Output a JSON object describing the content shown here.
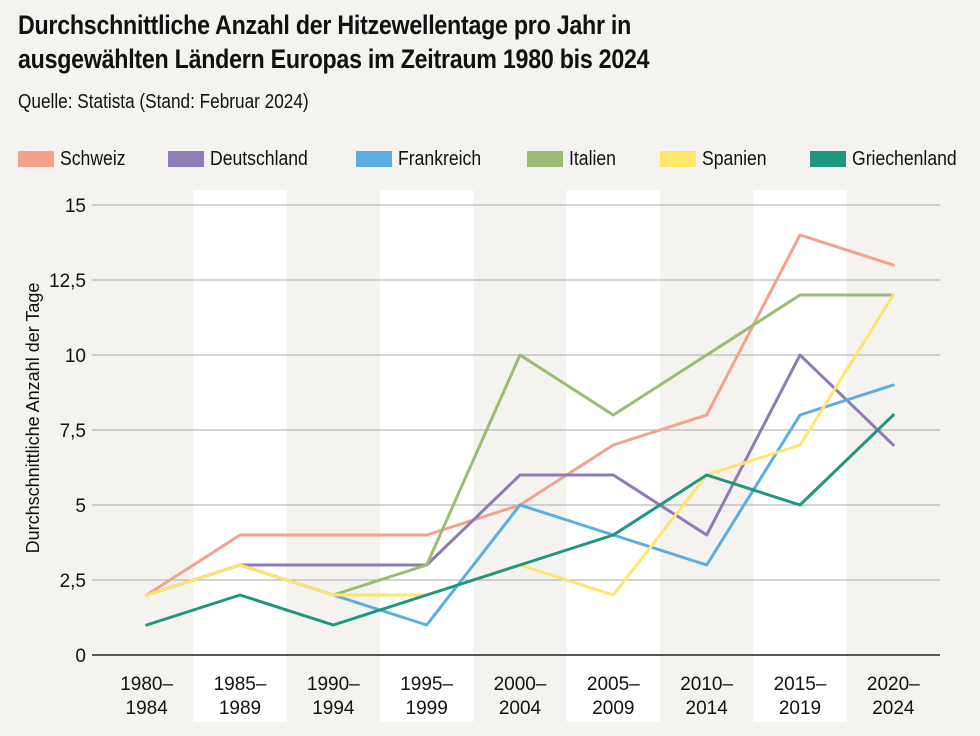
{
  "chart_data": {
    "type": "line",
    "title_lines": [
      "Durchschnittliche Anzahl der Hitzewellentage pro Jahr in",
      "ausgewählten Ländern Europas im Zeitraum 1980 bis 2024"
    ],
    "subtitle": "Quelle: Statista (Stand: Februar 2024)",
    "ylabel": "Durchschnittliche Anzahl der Tage",
    "xlabel": "",
    "ylim": [
      0,
      15
    ],
    "yticks": [
      0,
      2.5,
      5,
      7.5,
      10,
      12.5,
      15
    ],
    "ytick_labels": [
      "0",
      "2,5",
      "5",
      "7,5",
      "10",
      "12,5",
      "15"
    ],
    "categories": [
      [
        "1980–",
        "1984"
      ],
      [
        "1985–",
        "1989"
      ],
      [
        "1990–",
        "1994"
      ],
      [
        "1995–",
        "1999"
      ],
      [
        "2000–",
        "2004"
      ],
      [
        "2005–",
        "2009"
      ],
      [
        "2010–",
        "2014"
      ],
      [
        "2015–",
        "2019"
      ],
      [
        "2020–",
        "2024"
      ]
    ],
    "grid": true,
    "legend_position": "top",
    "series": [
      {
        "name": "Schweiz",
        "color": "#f4a28c",
        "values": [
          2,
          4,
          4,
          4,
          5,
          7,
          8,
          14,
          13
        ]
      },
      {
        "name": "Deutschland",
        "color": "#8f7cb6",
        "values": [
          2,
          3,
          3,
          3,
          6,
          6,
          4,
          10,
          7
        ]
      },
      {
        "name": "Frankreich",
        "color": "#5aaee0",
        "values": [
          2,
          3,
          2,
          1,
          5,
          4,
          3,
          8,
          9
        ]
      },
      {
        "name": "Italien",
        "color": "#9bbd73",
        "values": [
          2,
          3,
          2,
          3,
          10,
          8,
          10,
          12,
          12
        ]
      },
      {
        "name": "Spanien",
        "color": "#fde66b",
        "values": [
          2,
          3,
          2,
          2,
          3,
          2,
          6,
          7,
          12
        ]
      },
      {
        "name": "Griechenland",
        "color": "#1f9682",
        "values": [
          1,
          2,
          1,
          2,
          3,
          4,
          6,
          5,
          8
        ]
      }
    ]
  }
}
